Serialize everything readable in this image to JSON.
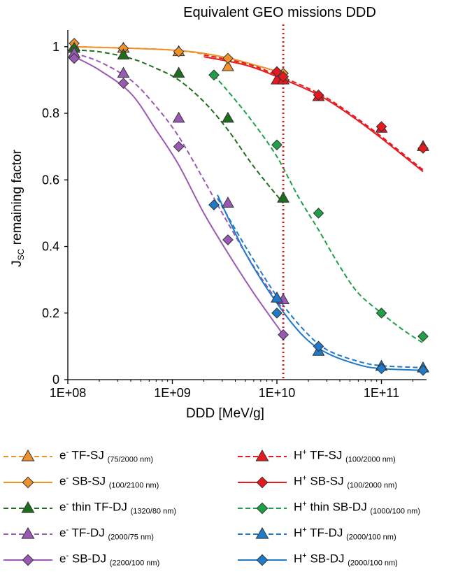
{
  "chart_data": {
    "type": "scatter",
    "title": "Equivalent GEO missions DDD",
    "xlabel": "DDD [MeV/g]",
    "ylabel_main": "J",
    "ylabel_sub": "SC",
    "ylabel_rest": " remaining factor",
    "xscale": "log",
    "xlim": [
      100000000.0,
      270000000000.0
    ],
    "ylim": [
      0,
      1.05
    ],
    "x_ticks": [
      100000000.0,
      1000000000.0,
      10000000000.0,
      100000000000.0
    ],
    "x_tick_labels": [
      "1E+08",
      "1E+09",
      "1E+10",
      "1E+11"
    ],
    "y_ticks": [
      0,
      0.2,
      0.4,
      0.6,
      0.8,
      1
    ],
    "y_tick_labels": [
      "0",
      "0.2",
      "0.4",
      "0.6",
      "0.8",
      "1"
    ],
    "grid": false,
    "legend_position": "bottom",
    "reference_line": {
      "x": 11500000000.0,
      "color": "#e8191e",
      "style": "dotted"
    },
    "series": [
      {
        "particle": "e",
        "charge": "-",
        "cell": "TF-SJ",
        "thickness": "(75/2000 nm)",
        "color": "#f0922b",
        "marker": "triangle",
        "line": "dashed",
        "points": [
          [
            115000000.0,
            1.0
          ],
          [
            340000000.0,
            0.995
          ],
          [
            1150000000.0,
            0.985
          ],
          [
            3400000000.0,
            0.94
          ],
          [
            11500000000.0,
            0.91
          ]
        ],
        "fit": [
          [
            115000000.0,
            1.0
          ],
          [
            1000000000.0,
            0.99
          ],
          [
            3000000000.0,
            0.965
          ],
          [
            7000000000.0,
            0.93
          ],
          [
            11500000000.0,
            0.905
          ]
        ]
      },
      {
        "particle": "e",
        "charge": "-",
        "cell": "SB-SJ",
        "thickness": "(100/2100 nm)",
        "color": "#f0922b",
        "marker": "diamond",
        "line": "solid",
        "points": [
          [
            115000000.0,
            1.01
          ],
          [
            340000000.0,
            0.995
          ],
          [
            1150000000.0,
            0.985
          ],
          [
            3400000000.0,
            0.965
          ],
          [
            11500000000.0,
            0.92
          ]
        ],
        "fit": [
          [
            115000000.0,
            1.0
          ],
          [
            1000000000.0,
            0.99
          ],
          [
            3000000000.0,
            0.97
          ],
          [
            7000000000.0,
            0.94
          ],
          [
            11500000000.0,
            0.92
          ]
        ]
      },
      {
        "particle": "e",
        "charge": "-",
        "cell": "thin TF-DJ",
        "thickness": "(1320/80 nm)",
        "color": "#1e6e1e",
        "marker": "triangle",
        "line": "dashed",
        "points": [
          [
            115000000.0,
            0.995
          ],
          [
            340000000.0,
            0.975
          ],
          [
            1150000000.0,
            0.92
          ],
          [
            3400000000.0,
            0.785
          ],
          [
            11500000000.0,
            0.545
          ]
        ],
        "fit": [
          [
            115000000.0,
            0.99
          ],
          [
            200000000.0,
            0.985
          ],
          [
            400000000.0,
            0.965
          ],
          [
            700000000.0,
            0.935
          ],
          [
            1150000000.0,
            0.9
          ],
          [
            2000000000.0,
            0.835
          ],
          [
            3400000000.0,
            0.75
          ],
          [
            6000000000.0,
            0.64
          ],
          [
            11500000000.0,
            0.53
          ]
        ]
      },
      {
        "particle": "e",
        "charge": "-",
        "cell": "TF-DJ",
        "thickness": "(2000/75 nm)",
        "color": "#9b59b6",
        "marker": "triangle",
        "line": "dashed",
        "points": [
          [
            115000000.0,
            0.98
          ],
          [
            340000000.0,
            0.92
          ],
          [
            1150000000.0,
            0.785
          ],
          [
            3400000000.0,
            0.53
          ],
          [
            11500000000.0,
            0.24
          ]
        ],
        "fit": [
          [
            115000000.0,
            0.98
          ],
          [
            200000000.0,
            0.955
          ],
          [
            400000000.0,
            0.9
          ],
          [
            700000000.0,
            0.82
          ],
          [
            1150000000.0,
            0.73
          ],
          [
            2000000000.0,
            0.6
          ],
          [
            3400000000.0,
            0.47
          ],
          [
            6000000000.0,
            0.34
          ],
          [
            11500000000.0,
            0.21
          ]
        ]
      },
      {
        "particle": "e",
        "charge": "-",
        "cell": "SB-DJ",
        "thickness": "(2200/100 nm)",
        "color": "#9b59b6",
        "marker": "diamond",
        "line": "solid",
        "points": [
          [
            115000000.0,
            0.965
          ],
          [
            340000000.0,
            0.89
          ],
          [
            1150000000.0,
            0.7
          ],
          [
            3400000000.0,
            0.42
          ],
          [
            11500000000.0,
            0.135
          ]
        ],
        "fit": [
          [
            115000000.0,
            0.97
          ],
          [
            200000000.0,
            0.93
          ],
          [
            400000000.0,
            0.86
          ],
          [
            700000000.0,
            0.75
          ],
          [
            1150000000.0,
            0.645
          ],
          [
            2000000000.0,
            0.5
          ],
          [
            3400000000.0,
            0.38
          ],
          [
            6000000000.0,
            0.26
          ],
          [
            11500000000.0,
            0.135
          ]
        ]
      },
      {
        "particle": "H",
        "charge": "+",
        "cell": "TF-SJ",
        "thickness": "(100/2000 nm)",
        "color": "#e8191e",
        "marker": "triangle",
        "line": "dashed",
        "points": [
          [
            10000000000.0,
            0.9
          ],
          [
            11500000000.0,
            0.9
          ],
          [
            25000000000.0,
            0.85
          ],
          [
            100000000000.0,
            0.755
          ],
          [
            250000000000.0,
            0.7
          ]
        ],
        "fit": [
          [
            2000000000.0,
            0.975
          ],
          [
            5000000000.0,
            0.95
          ],
          [
            10000000000.0,
            0.915
          ],
          [
            25000000000.0,
            0.86
          ],
          [
            50000000000.0,
            0.8
          ],
          [
            100000000000.0,
            0.73
          ],
          [
            250000000000.0,
            0.63
          ]
        ]
      },
      {
        "particle": "H",
        "charge": "+",
        "cell": "SB-SJ",
        "thickness": "(100/2000 nm)",
        "color": "#e8191e",
        "marker": "diamond",
        "line": "solid",
        "points": [
          [
            10000000000.0,
            0.925
          ],
          [
            11500000000.0,
            0.91
          ],
          [
            25000000000.0,
            0.855
          ],
          [
            100000000000.0,
            0.76
          ],
          [
            250000000000.0,
            0.695
          ]
        ],
        "fit": [
          [
            2000000000.0,
            0.97
          ],
          [
            5000000000.0,
            0.945
          ],
          [
            10000000000.0,
            0.91
          ],
          [
            25000000000.0,
            0.855
          ],
          [
            50000000000.0,
            0.795
          ],
          [
            100000000000.0,
            0.725
          ],
          [
            250000000000.0,
            0.625
          ]
        ]
      },
      {
        "particle": "H",
        "charge": "+",
        "cell": "thin SB-DJ",
        "thickness": "(1000/100 nm)",
        "color": "#1fa048",
        "marker": "diamond",
        "line": "dashed",
        "points": [
          [
            2500000000.0,
            0.915
          ],
          [
            10000000000.0,
            0.705
          ],
          [
            25000000000.0,
            0.5
          ],
          [
            100000000000.0,
            0.2
          ],
          [
            250000000000.0,
            0.13
          ]
        ],
        "fit": [
          [
            2500000000.0,
            0.915
          ],
          [
            4000000000.0,
            0.84
          ],
          [
            6000000000.0,
            0.77
          ],
          [
            10000000000.0,
            0.67
          ],
          [
            16000000000.0,
            0.55
          ],
          [
            25000000000.0,
            0.45
          ],
          [
            40000000000.0,
            0.34
          ],
          [
            60000000000.0,
            0.26
          ],
          [
            100000000000.0,
            0.2
          ],
          [
            160000000000.0,
            0.15
          ],
          [
            250000000000.0,
            0.11
          ]
        ]
      },
      {
        "particle": "H",
        "charge": "+",
        "cell": "TF-DJ",
        "thickness": "(2000/100 nm)",
        "color": "#1f7ac9",
        "marker": "triangle",
        "line": "dashed",
        "points": [
          [
            10000000000.0,
            0.245
          ],
          [
            25000000000.0,
            0.085
          ],
          [
            100000000000.0,
            0.04
          ],
          [
            250000000000.0,
            0.035
          ]
        ],
        "fit": [
          [
            2700000000.0,
            0.545
          ],
          [
            5000000000.0,
            0.4
          ],
          [
            10000000000.0,
            0.25
          ],
          [
            18000000000.0,
            0.15
          ],
          [
            30000000000.0,
            0.09
          ],
          [
            60000000000.0,
            0.055
          ],
          [
            100000000000.0,
            0.042
          ],
          [
            250000000000.0,
            0.036
          ]
        ]
      },
      {
        "particle": "H",
        "charge": "+",
        "cell": "SB-DJ",
        "thickness": "(2000/100 nm)",
        "color": "#1f7ac9",
        "marker": "diamond",
        "line": "solid",
        "points": [
          [
            2500000000.0,
            0.525
          ],
          [
            10000000000.0,
            0.2
          ],
          [
            25000000000.0,
            0.1
          ],
          [
            100000000000.0,
            0.033
          ],
          [
            250000000000.0,
            0.028
          ]
        ],
        "fit": [
          [
            2700000000.0,
            0.555
          ],
          [
            5000000000.0,
            0.38
          ],
          [
            10000000000.0,
            0.23
          ],
          [
            18000000000.0,
            0.13
          ],
          [
            30000000000.0,
            0.08
          ],
          [
            60000000000.0,
            0.045
          ],
          [
            100000000000.0,
            0.033
          ],
          [
            250000000000.0,
            0.028
          ]
        ]
      }
    ]
  }
}
